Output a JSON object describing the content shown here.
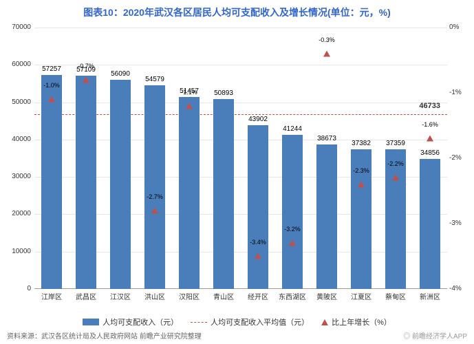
{
  "title": "图表10：2020年武汉各区居民人均可支配收入及增长情况(单位：元，%)",
  "title_fontsize": 14,
  "title_color": "#3366cc",
  "y_left": {
    "min": 0,
    "max": 70000,
    "step": 10000
  },
  "y_right": {
    "min": -4,
    "max": 0,
    "step": 1,
    "suffix": "%"
  },
  "bar_color": "#4a7ebb",
  "marker_color": "#c0504d",
  "avg_line_color": "#c0504d",
  "avg_value": 46733,
  "avg_label": "46733",
  "series": [
    {
      "district": "江岸区",
      "income": 57257,
      "growth": -1.0,
      "growth_label": "-1.0%"
    },
    {
      "district": "武昌区",
      "income": 57109,
      "growth": -0.7,
      "growth_label": "-0.7%"
    },
    {
      "district": "江汉区",
      "income": 56090,
      "growth": null,
      "growth_label": ""
    },
    {
      "district": "洪山区",
      "income": 54579,
      "growth": -2.7,
      "growth_label": "-2.7%"
    },
    {
      "district": "汉阳区",
      "income": 51457,
      "growth": -1.1,
      "growth_label": "-1.1%"
    },
    {
      "district": "青山区",
      "income": 50893,
      "growth": null,
      "growth_label": ""
    },
    {
      "district": "经开区",
      "income": 43902,
      "growth": -3.4,
      "growth_label": "-3.4%"
    },
    {
      "district": "东西湖区",
      "income": 41244,
      "growth": -3.2,
      "growth_label": "-3.2%"
    },
    {
      "district": "黄陂区",
      "income": 38673,
      "growth": -0.3,
      "growth_label": "-0.3%"
    },
    {
      "district": "江夏区",
      "income": 37382,
      "growth": -2.3,
      "growth_label": "-2.3%"
    },
    {
      "district": "蔡甸区",
      "income": 37359,
      "growth": -2.2,
      "growth_label": "-2.2%"
    },
    {
      "district": "新洲区",
      "income": 34856,
      "growth": -1.6,
      "growth_label": "-1.6%"
    }
  ],
  "legend": {
    "bar": "人均可支配收入（元）",
    "avg": "人均可支配收入平均值（元）",
    "growth": "比上年增长（%）"
  },
  "source": "资料来源：武汉各区统计局及人民政府网站 前瞻产业研究院整理",
  "watermark": "◎ 前瞻经济学人APP"
}
